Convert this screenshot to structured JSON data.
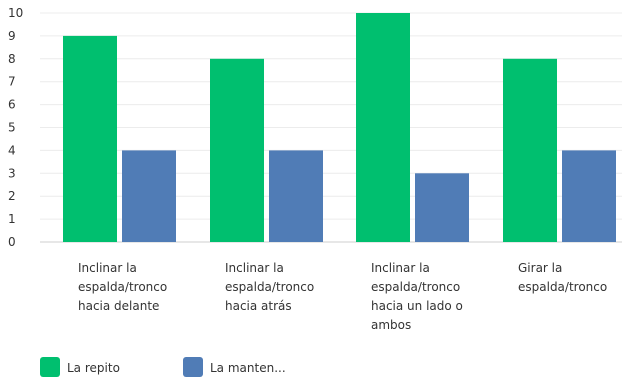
{
  "chart_data": {
    "type": "bar",
    "categories": [
      [
        "Inclinar la",
        "espalda/tronco",
        "hacia delante"
      ],
      [
        "Inclinar la",
        "espalda/tronco",
        "hacia atrás"
      ],
      [
        "Inclinar la",
        "espalda/tronco",
        "hacia un lado o",
        "ambos"
      ],
      [
        "Girar la",
        "espalda/tronco"
      ]
    ],
    "series": [
      {
        "name": "La repito",
        "values": [
          9,
          8,
          10,
          8
        ],
        "color": "#00BF6F"
      },
      {
        "name": "La manten...",
        "values": [
          4,
          4,
          3,
          4
        ],
        "color": "#507CB6"
      }
    ],
    "ylim": [
      0,
      10
    ],
    "yticks": [
      0,
      1,
      2,
      3,
      4,
      5,
      6,
      7,
      8,
      9,
      10
    ],
    "grid": true,
    "legend": "bottom-left",
    "title": "",
    "xlabel": "",
    "ylabel": ""
  }
}
